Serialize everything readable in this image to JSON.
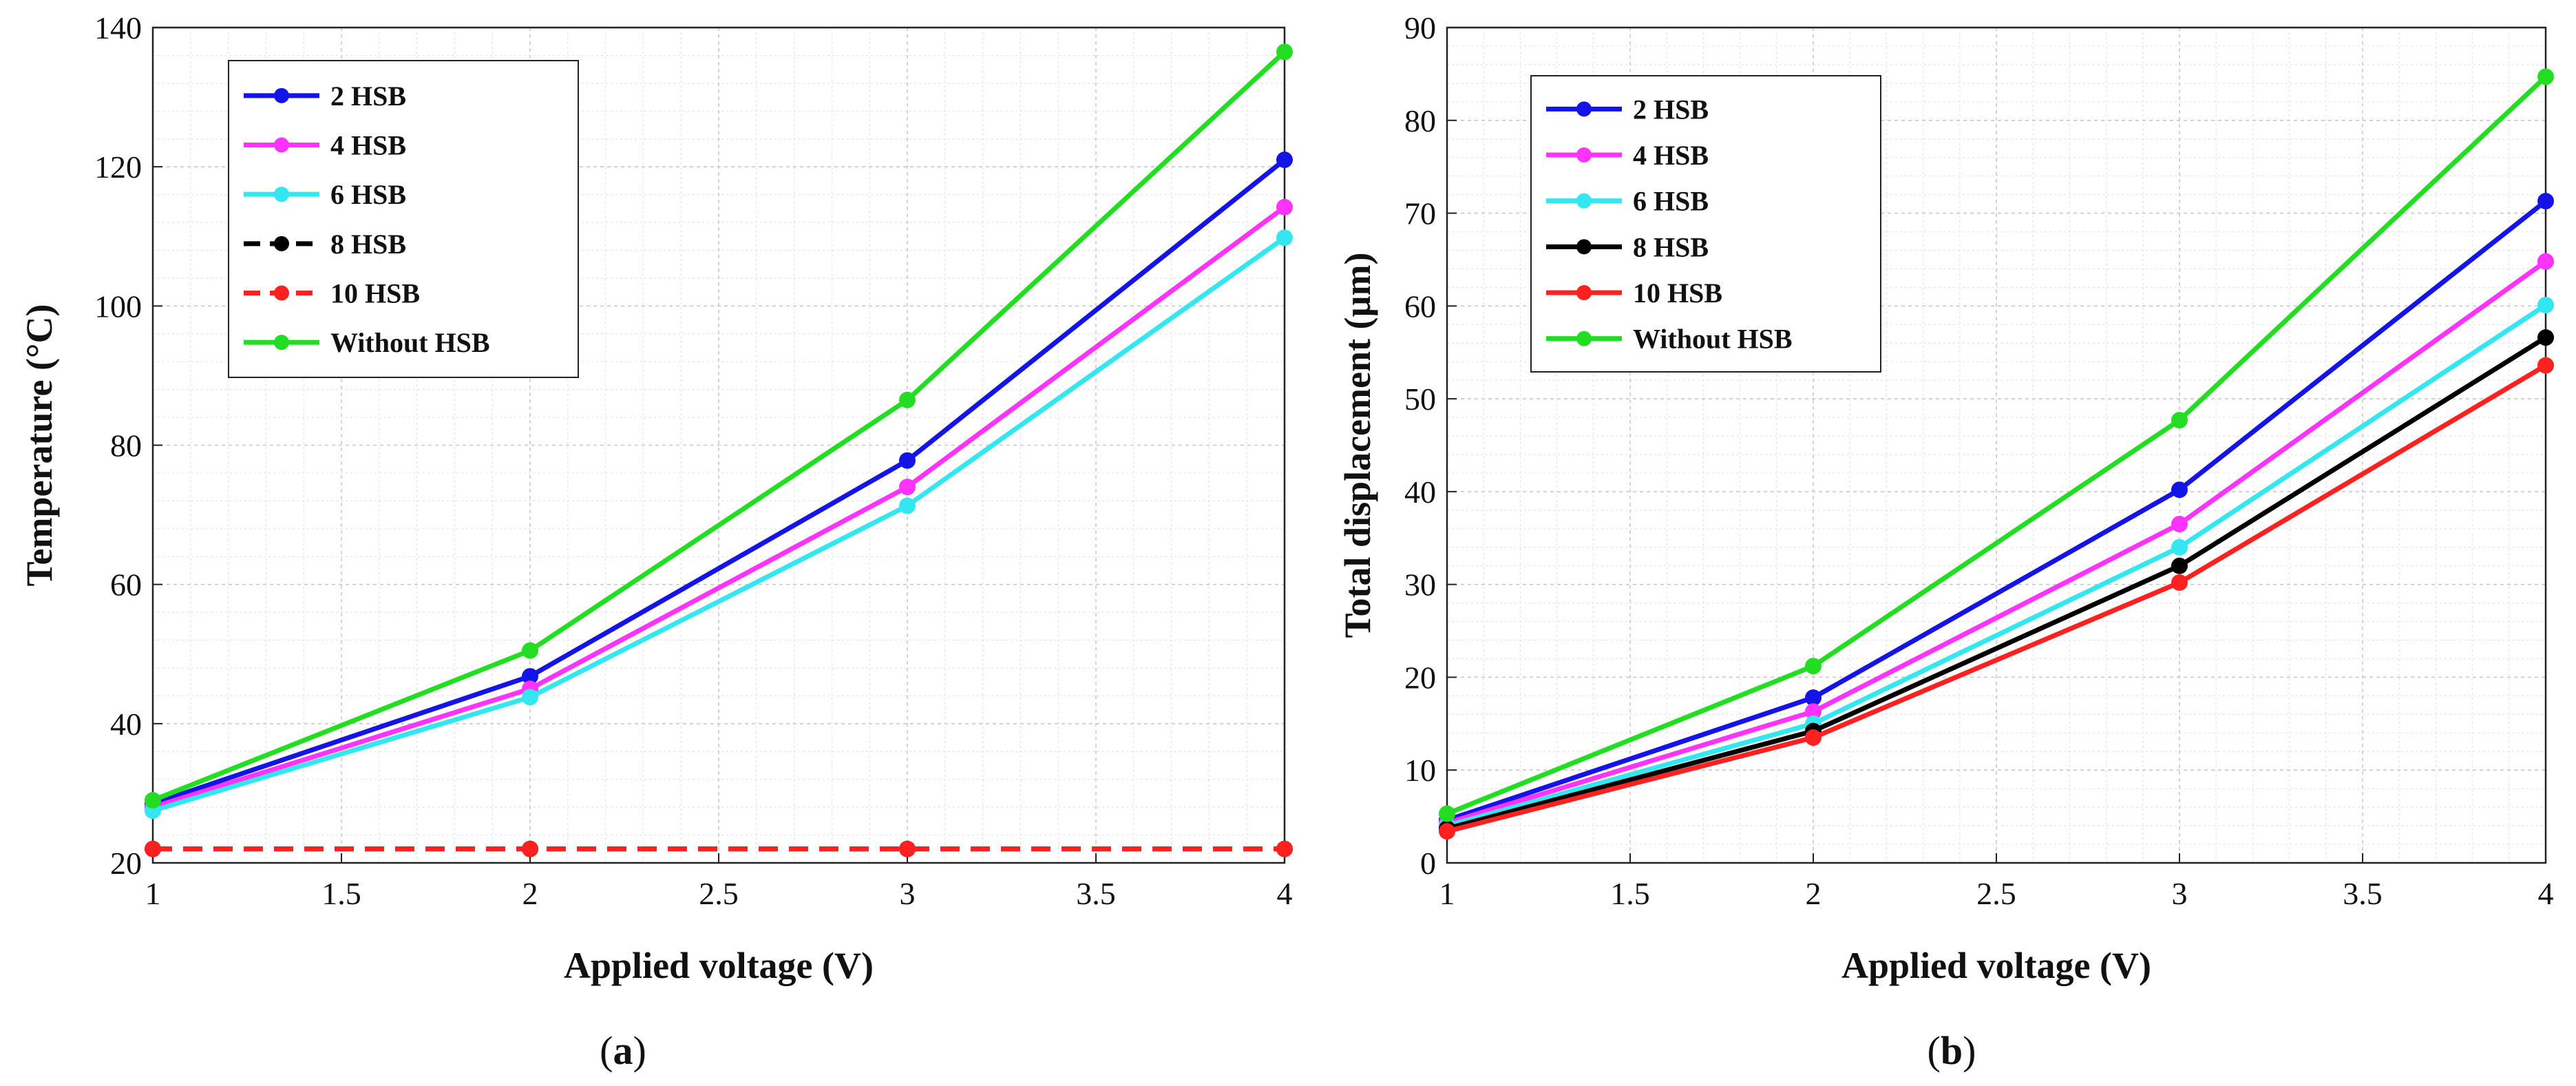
{
  "chart_data": [
    {
      "type": "line",
      "panel": "a",
      "caption": {
        "open": "(",
        "letter": "a",
        "close": ")"
      },
      "xlabel": "Applied voltage (V)",
      "ylabel": "Temperature (°C)",
      "xlim": [
        1,
        4
      ],
      "ylim": [
        20,
        140
      ],
      "xticks": [
        1,
        1.5,
        2,
        2.5,
        3,
        3.5,
        4
      ],
      "yticks": [
        20,
        40,
        60,
        80,
        100,
        120,
        140
      ],
      "grid": true,
      "legend": "top-left",
      "x": [
        1,
        2,
        3,
        4
      ],
      "series": [
        {
          "name": "2 HSB",
          "color": "#1414e6",
          "dash": "solid",
          "values": [
            28.5,
            46.8,
            77.8,
            121.0
          ]
        },
        {
          "name": "4 HSB",
          "color": "#ff33ff",
          "dash": "solid",
          "values": [
            28.0,
            45.0,
            74.0,
            114.2
          ]
        },
        {
          "name": "6 HSB",
          "color": "#33e6f0",
          "dash": "solid",
          "values": [
            27.5,
            43.8,
            71.3,
            109.8
          ]
        },
        {
          "name": "8 HSB",
          "color": "#000000",
          "dash": "dashed",
          "values": [
            22.0,
            22.0,
            22.0,
            22.0
          ]
        },
        {
          "name": "10 HSB",
          "color": "#ff2020",
          "dash": "dashed",
          "values": [
            22.0,
            22.0,
            22.0,
            22.0
          ]
        },
        {
          "name": "Without HSB",
          "color": "#22dd22",
          "dash": "solid",
          "values": [
            29.0,
            50.5,
            86.5,
            136.5
          ]
        }
      ]
    },
    {
      "type": "line",
      "panel": "b",
      "caption": {
        "open": "(",
        "letter": "b",
        "close": ")"
      },
      "xlabel": "Applied voltage (V)",
      "ylabel": "Total displacement (µm)",
      "xlim": [
        1,
        4
      ],
      "ylim": [
        0,
        90
      ],
      "xticks": [
        1,
        1.5,
        2,
        2.5,
        3,
        3.5,
        4
      ],
      "yticks": [
        0,
        10,
        20,
        30,
        40,
        50,
        60,
        70,
        80,
        90
      ],
      "grid": true,
      "legend": "top-left",
      "x": [
        1,
        2,
        3,
        4
      ],
      "series": [
        {
          "name": "2 HSB",
          "color": "#1414e6",
          "dash": "solid",
          "values": [
            4.6,
            17.8,
            40.2,
            71.3
          ]
        },
        {
          "name": "4 HSB",
          "color": "#ff33ff",
          "dash": "solid",
          "values": [
            4.3,
            16.3,
            36.5,
            64.8
          ]
        },
        {
          "name": "6 HSB",
          "color": "#33e6f0",
          "dash": "solid",
          "values": [
            4.0,
            15.0,
            34.0,
            60.1
          ]
        },
        {
          "name": "8 HSB",
          "color": "#000000",
          "dash": "solid",
          "values": [
            3.7,
            14.2,
            32.0,
            56.6
          ]
        },
        {
          "name": "10 HSB",
          "color": "#ff2020",
          "dash": "solid",
          "values": [
            3.4,
            13.5,
            30.2,
            53.6
          ]
        },
        {
          "name": "Without HSB",
          "color": "#22dd22",
          "dash": "solid",
          "values": [
            5.3,
            21.2,
            47.7,
            84.7
          ]
        }
      ]
    }
  ]
}
